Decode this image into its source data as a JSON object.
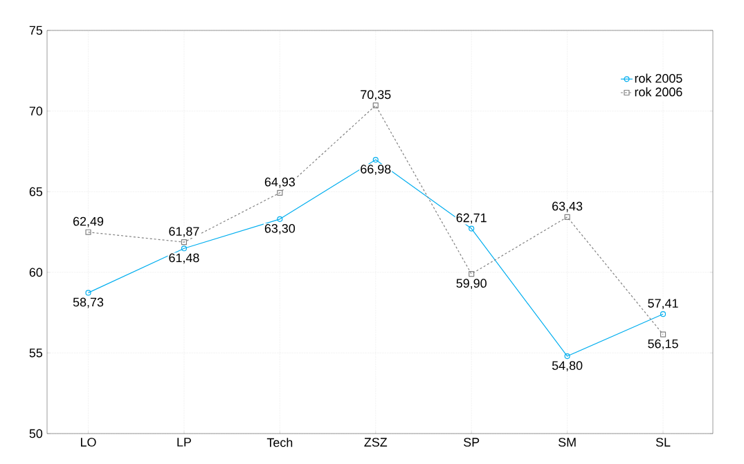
{
  "chart_data": {
    "type": "line",
    "categories": [
      "LO",
      "LP",
      "Tech",
      "ZSZ",
      "SP",
      "SM",
      "SL"
    ],
    "series": [
      {
        "name": "rok 2005",
        "color": "#00aeef",
        "marker": "circle",
        "line_style": "solid",
        "values": [
          58.73,
          61.48,
          63.3,
          66.98,
          62.71,
          54.8,
          57.41
        ],
        "value_labels": [
          "58,73",
          "61,48",
          "63,30",
          "66,98",
          "62,71",
          "54,80",
          "57,41"
        ]
      },
      {
        "name": "rok 2006",
        "color": "#808080",
        "marker": "square",
        "line_style": "dashed",
        "values": [
          62.49,
          61.87,
          64.93,
          70.35,
          59.9,
          63.43,
          56.15
        ],
        "value_labels": [
          "62,49",
          "61,87",
          "64,93",
          "70,35",
          "59,90",
          "63,43",
          "56,15"
        ]
      }
    ],
    "ylim": [
      50,
      75
    ],
    "yticks": [
      50,
      55,
      60,
      65,
      70,
      75
    ],
    "grid": true,
    "legend": "top right"
  }
}
